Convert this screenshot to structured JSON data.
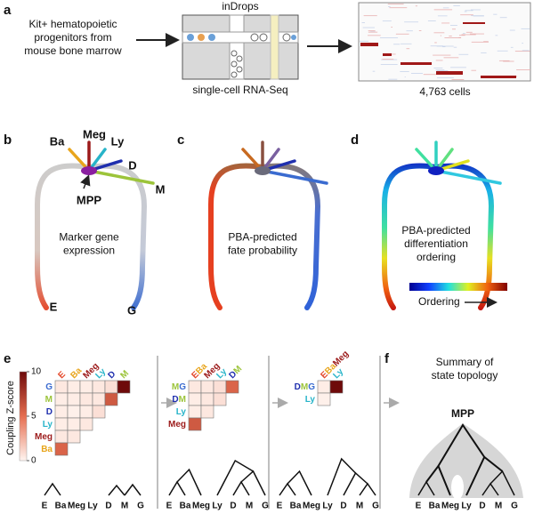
{
  "panels": {
    "a": {
      "letter": "a",
      "source_lines": [
        "Kit+ hematopoietic",
        "progenitors from",
        "mouse bone marrow"
      ],
      "method_title": "inDrops",
      "method_subtitle": "single-cell RNA-Seq",
      "result": "4,763 cells"
    },
    "b": {
      "letter": "b",
      "caption_lines": [
        "Marker gene",
        "expression"
      ],
      "labels": [
        "Ba",
        "Meg",
        "Ly",
        "D",
        "M",
        "MPP",
        "E",
        "G"
      ]
    },
    "c": {
      "letter": "c",
      "caption_lines": [
        "PBA-predicted",
        "fate probability"
      ]
    },
    "d": {
      "letter": "d",
      "caption_lines": [
        "PBA-predicted",
        "differentiation",
        "ordering"
      ],
      "colorbar_label": "Ordering"
    },
    "e": {
      "letter": "e",
      "colorbar_label": "Coupling Z-score",
      "colorbar_range": [
        0,
        10
      ],
      "colorbar_ticks": [
        10,
        5,
        0
      ],
      "matrices": [
        {
          "columns": [
            [
              "E"
            ],
            [
              "Ba"
            ],
            [
              "Meg"
            ],
            [
              "Ly"
            ],
            [
              "D"
            ],
            [
              "M"
            ]
          ],
          "rows": [
            [
              "G"
            ],
            [
              "M"
            ],
            [
              "D"
            ],
            [
              "Ly"
            ],
            [
              "Meg"
            ],
            [
              "Ba"
            ]
          ],
          "values": [
            [
              0.5,
              0.3,
              0.3,
              0.5,
              0.8,
              10
            ],
            [
              0.3,
              0.3,
              0.5,
              0.5,
              6
            ],
            [
              0.3,
              0.2,
              0.3,
              0.8
            ],
            [
              0.3,
              0.3,
              0.5
            ],
            [
              0.5,
              0.5
            ],
            [
              5.5
            ]
          ]
        },
        {
          "columns": [
            [
              "E",
              "Ba"
            ],
            [
              "Meg"
            ],
            [
              "Ly"
            ],
            [
              "D",
              "M"
            ]
          ],
          "rows": [
            [
              "M",
              "G"
            ],
            [
              "D",
              "M"
            ],
            [
              "Ly"
            ],
            [
              "Meg"
            ]
          ],
          "values": [
            [
              0.5,
              0.5,
              0.8,
              5.5
            ],
            [
              0.3,
              0.5,
              0.8
            ],
            [
              0.3,
              0.5
            ],
            [
              6
            ]
          ]
        },
        {
          "columns": [
            [
              "E",
              "Ba",
              "Meg"
            ],
            [
              "Ly"
            ]
          ],
          "rows": [
            [
              "D",
              "M",
              "G"
            ],
            [
              "Ly"
            ]
          ],
          "values": [
            [
              0.3,
              10
            ],
            [
              0.2
            ]
          ]
        }
      ],
      "dendrogram_leaves": [
        [
          "E",
          "Ba",
          "Meg",
          "Ly",
          "D",
          "M",
          "G"
        ],
        [
          "E",
          "Ba",
          "Meg",
          "Ly",
          "D",
          "M",
          "G"
        ],
        [
          "E",
          "Ba",
          "Meg",
          "Ly",
          "D",
          "M",
          "G"
        ]
      ]
    },
    "f": {
      "letter": "f",
      "title_lines": [
        "Summary of",
        "state topology"
      ],
      "root": "MPP",
      "leaves": [
        "E",
        "Ba",
        "Meg",
        "Ly",
        "D",
        "M",
        "G"
      ]
    }
  },
  "label_colors": {
    "E": "#e4482a",
    "Ba": "#e8a51c",
    "Meg": "#9c1a1a",
    "Ly": "#27b4c9",
    "D": "#1f2fae",
    "M": "#9cc43a",
    "G": "#3a6bd0",
    "MPP": "#8a1fa0"
  }
}
